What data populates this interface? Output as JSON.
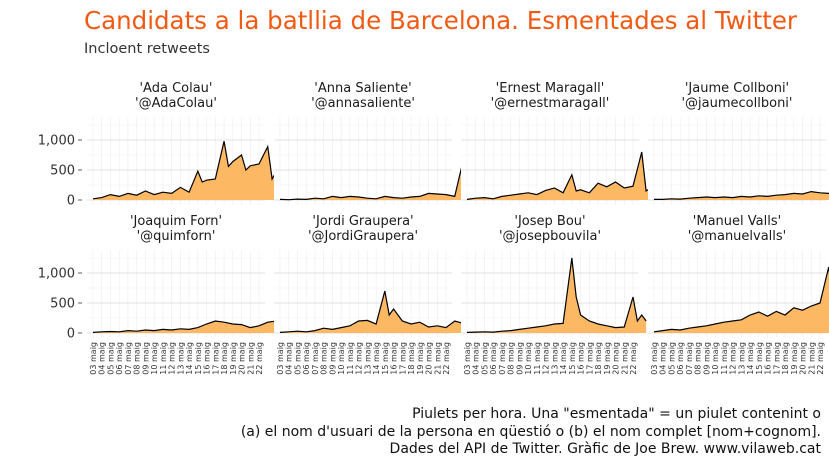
{
  "title": "Candidats a la batllia de Barcelona. Esmentades al Twitter",
  "subtitle": "Incloent retweets",
  "caption": {
    "line1": "Piulets per hora. Una \"esmentada\" = un piulet contenint o",
    "line2": "(a) el nom d'usuari de la persona en qüestió o (b) el nom complet [nom+cognom].",
    "line3": "Dades del API de Twitter. Gràfic de Joe Brew. www.vilaweb.cat"
  },
  "colors": {
    "title": "#f05a14",
    "fill": "#fdb863",
    "line": "#000000",
    "grid": "#e5e5e5"
  },
  "chart_data": {
    "type": "area",
    "x_unit": "hour",
    "date_labels": [
      "03 maig",
      "04 maig",
      "05 maig",
      "06 maig",
      "07 maig",
      "08 maig",
      "09 maig",
      "10 maig",
      "11 maig",
      "12 maig",
      "13 maig",
      "14 maig",
      "15 maig",
      "16 maig",
      "17 maig",
      "18 maig",
      "19 maig",
      "20 maig",
      "21 maig",
      "22 maig"
    ],
    "ylim": [
      0,
      1300
    ],
    "yticks": [
      0,
      500,
      1000
    ],
    "ytick_labels": [
      "0",
      "500",
      "1,000"
    ],
    "grid": true,
    "panels": [
      {
        "name": "'Ada Colau'",
        "handle": "'@AdaColau'",
        "points": [
          [
            0,
            20
          ],
          [
            1,
            40
          ],
          [
            2,
            90
          ],
          [
            3,
            60
          ],
          [
            4,
            110
          ],
          [
            5,
            80
          ],
          [
            6,
            150
          ],
          [
            7,
            90
          ],
          [
            8,
            130
          ],
          [
            9,
            110
          ],
          [
            10,
            210
          ],
          [
            11,
            130
          ],
          [
            12,
            480
          ],
          [
            12.5,
            300
          ],
          [
            13,
            330
          ],
          [
            14,
            350
          ],
          [
            15,
            980
          ],
          [
            15.5,
            560
          ],
          [
            16,
            640
          ],
          [
            17,
            750
          ],
          [
            17.5,
            500
          ],
          [
            18,
            570
          ],
          [
            19,
            600
          ],
          [
            20,
            890
          ],
          [
            20.5,
            350
          ],
          [
            21,
            480
          ],
          [
            21.5,
            300
          ]
        ]
      },
      {
        "name": "'Anna Saliente'",
        "handle": "'@annasaliente'",
        "points": [
          [
            0,
            10
          ],
          [
            1,
            5
          ],
          [
            2,
            15
          ],
          [
            3,
            10
          ],
          [
            4,
            30
          ],
          [
            5,
            20
          ],
          [
            6,
            60
          ],
          [
            7,
            40
          ],
          [
            8,
            60
          ],
          [
            9,
            50
          ],
          [
            10,
            30
          ],
          [
            11,
            20
          ],
          [
            12,
            60
          ],
          [
            13,
            40
          ],
          [
            14,
            30
          ],
          [
            15,
            50
          ],
          [
            16,
            60
          ],
          [
            17,
            110
          ],
          [
            18,
            100
          ],
          [
            19,
            90
          ],
          [
            20,
            60
          ],
          [
            21,
            680
          ],
          [
            21.5,
            60
          ]
        ]
      },
      {
        "name": "'Ernest Maragall'",
        "handle": "'@ernestmaragall'",
        "points": [
          [
            0,
            10
          ],
          [
            1,
            30
          ],
          [
            2,
            40
          ],
          [
            3,
            20
          ],
          [
            4,
            60
          ],
          [
            5,
            80
          ],
          [
            6,
            100
          ],
          [
            7,
            120
          ],
          [
            8,
            90
          ],
          [
            9,
            160
          ],
          [
            10,
            200
          ],
          [
            11,
            120
          ],
          [
            12,
            420
          ],
          [
            12.5,
            150
          ],
          [
            13,
            170
          ],
          [
            14,
            120
          ],
          [
            15,
            280
          ],
          [
            16,
            220
          ],
          [
            17,
            300
          ],
          [
            18,
            200
          ],
          [
            19,
            230
          ],
          [
            20,
            800
          ],
          [
            20.5,
            150
          ],
          [
            21,
            200
          ],
          [
            21.5,
            170
          ]
        ]
      },
      {
        "name": "'Jaume Collboni'",
        "handle": "'@jaumecollboni'",
        "points": [
          [
            0,
            10
          ],
          [
            1,
            10
          ],
          [
            2,
            20
          ],
          [
            3,
            15
          ],
          [
            4,
            30
          ],
          [
            5,
            40
          ],
          [
            6,
            50
          ],
          [
            7,
            40
          ],
          [
            8,
            50
          ],
          [
            9,
            40
          ],
          [
            10,
            60
          ],
          [
            11,
            50
          ],
          [
            12,
            70
          ],
          [
            13,
            60
          ],
          [
            14,
            80
          ],
          [
            15,
            90
          ],
          [
            16,
            110
          ],
          [
            17,
            100
          ],
          [
            18,
            140
          ],
          [
            19,
            120
          ],
          [
            20,
            110
          ],
          [
            21,
            90
          ],
          [
            21.5,
            50
          ]
        ]
      },
      {
        "name": "'Joaquim Forn'",
        "handle": "'@quimforn'",
        "points": [
          [
            0,
            10
          ],
          [
            1,
            20
          ],
          [
            2,
            25
          ],
          [
            3,
            20
          ],
          [
            4,
            40
          ],
          [
            5,
            30
          ],
          [
            6,
            50
          ],
          [
            7,
            40
          ],
          [
            8,
            60
          ],
          [
            9,
            50
          ],
          [
            10,
            70
          ],
          [
            11,
            60
          ],
          [
            12,
            90
          ],
          [
            13,
            150
          ],
          [
            14,
            200
          ],
          [
            15,
            180
          ],
          [
            16,
            150
          ],
          [
            17,
            140
          ],
          [
            18,
            90
          ],
          [
            19,
            120
          ],
          [
            20,
            180
          ],
          [
            21,
            200
          ],
          [
            21.5,
            150
          ]
        ]
      },
      {
        "name": "'Jordi Graupera'",
        "handle": "'@JordiGraupera'",
        "points": [
          [
            0,
            10
          ],
          [
            1,
            20
          ],
          [
            2,
            30
          ],
          [
            3,
            20
          ],
          [
            4,
            40
          ],
          [
            5,
            80
          ],
          [
            6,
            60
          ],
          [
            7,
            90
          ],
          [
            8,
            120
          ],
          [
            9,
            200
          ],
          [
            10,
            210
          ],
          [
            11,
            150
          ],
          [
            12,
            700
          ],
          [
            12.5,
            300
          ],
          [
            13,
            400
          ],
          [
            14,
            200
          ],
          [
            15,
            150
          ],
          [
            16,
            180
          ],
          [
            17,
            100
          ],
          [
            18,
            120
          ],
          [
            19,
            90
          ],
          [
            20,
            200
          ],
          [
            21,
            160
          ],
          [
            21.5,
            100
          ]
        ]
      },
      {
        "name": "'Josep Bou'",
        "handle": "'@josepbouvila'",
        "points": [
          [
            0,
            10
          ],
          [
            1,
            15
          ],
          [
            2,
            20
          ],
          [
            3,
            15
          ],
          [
            4,
            30
          ],
          [
            5,
            40
          ],
          [
            6,
            60
          ],
          [
            7,
            80
          ],
          [
            8,
            100
          ],
          [
            9,
            120
          ],
          [
            10,
            150
          ],
          [
            11,
            160
          ],
          [
            12,
            1250
          ],
          [
            12.5,
            600
          ],
          [
            13,
            300
          ],
          [
            14,
            200
          ],
          [
            15,
            150
          ],
          [
            16,
            120
          ],
          [
            17,
            90
          ],
          [
            18,
            100
          ],
          [
            19,
            600
          ],
          [
            19.5,
            200
          ],
          [
            20,
            300
          ],
          [
            20.5,
            200
          ]
        ]
      },
      {
        "name": "'Manuel Valls'",
        "handle": "'@manuelvalls'",
        "points": [
          [
            0,
            20
          ],
          [
            1,
            40
          ],
          [
            2,
            60
          ],
          [
            3,
            50
          ],
          [
            4,
            80
          ],
          [
            5,
            100
          ],
          [
            6,
            120
          ],
          [
            7,
            150
          ],
          [
            8,
            180
          ],
          [
            9,
            200
          ],
          [
            10,
            220
          ],
          [
            11,
            300
          ],
          [
            12,
            350
          ],
          [
            13,
            280
          ],
          [
            14,
            360
          ],
          [
            15,
            300
          ],
          [
            16,
            420
          ],
          [
            17,
            380
          ],
          [
            18,
            450
          ],
          [
            19,
            500
          ],
          [
            20,
            1100
          ],
          [
            20.5,
            500
          ],
          [
            21,
            1150
          ],
          [
            21.3,
            500
          ],
          [
            21.6,
            400
          ]
        ]
      }
    ]
  }
}
